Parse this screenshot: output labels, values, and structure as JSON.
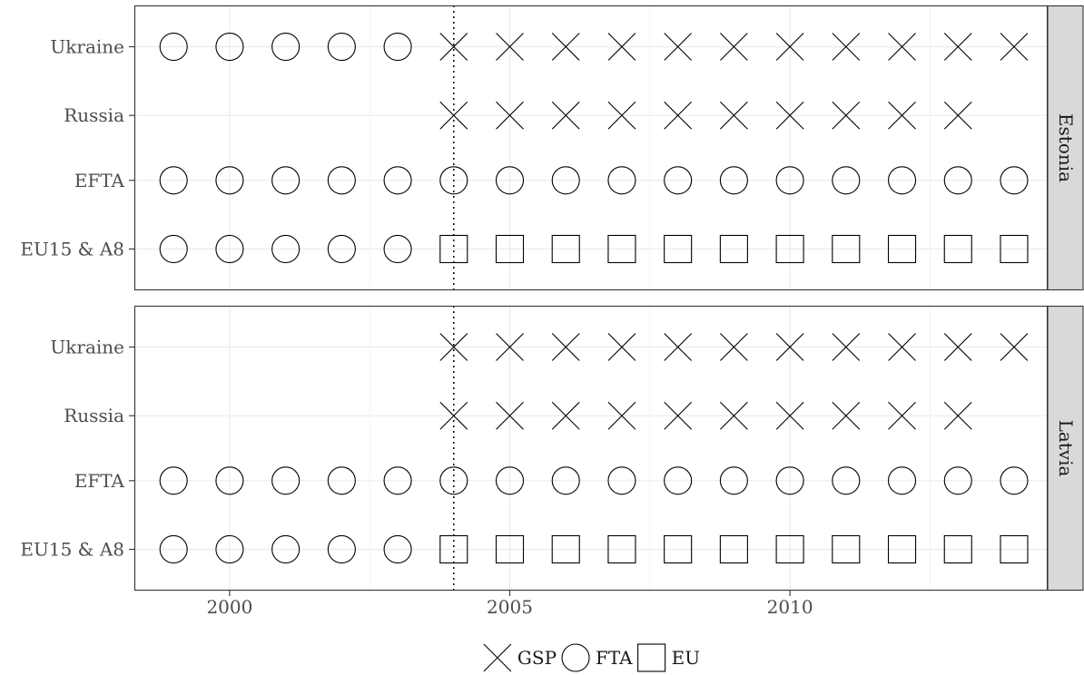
{
  "chart_data": {
    "type": "scatter",
    "x_axis": {
      "range": [
        1998.3,
        2014.6
      ],
      "major_ticks": [
        2000,
        2005,
        2010
      ],
      "tick_labels": [
        "2000",
        "2005",
        "2010"
      ],
      "grid": true
    },
    "y_categories": [
      "EU15 & A8",
      "EFTA",
      "Russia",
      "Ukraine"
    ],
    "reference_line": {
      "x": 2004,
      "style": "dotted"
    },
    "legend": {
      "position": "bottom",
      "entries": [
        {
          "label": "GSP",
          "shape": "cross"
        },
        {
          "label": "FTA",
          "shape": "circle"
        },
        {
          "label": "EU",
          "shape": "square"
        }
      ]
    },
    "panels": [
      {
        "strip_label": "Estonia",
        "rows": [
          {
            "partner": "Ukraine",
            "points": [
              {
                "from": 1999,
                "to": 2003,
                "regime": "FTA"
              },
              {
                "from": 2004,
                "to": 2014,
                "regime": "GSP"
              }
            ]
          },
          {
            "partner": "Russia",
            "points": [
              {
                "from": 2004,
                "to": 2013,
                "regime": "GSP"
              }
            ]
          },
          {
            "partner": "EFTA",
            "points": [
              {
                "from": 1999,
                "to": 2014,
                "regime": "FTA"
              }
            ]
          },
          {
            "partner": "EU15 & A8",
            "points": [
              {
                "from": 1999,
                "to": 2003,
                "regime": "FTA"
              },
              {
                "from": 2004,
                "to": 2014,
                "regime": "EU"
              }
            ]
          }
        ]
      },
      {
        "strip_label": "Latvia",
        "rows": [
          {
            "partner": "Ukraine",
            "points": [
              {
                "from": 2004,
                "to": 2014,
                "regime": "GSP"
              }
            ]
          },
          {
            "partner": "Russia",
            "points": [
              {
                "from": 2004,
                "to": 2013,
                "regime": "GSP"
              }
            ]
          },
          {
            "partner": "EFTA",
            "points": [
              {
                "from": 1999,
                "to": 2014,
                "regime": "FTA"
              }
            ]
          },
          {
            "partner": "EU15 & A8",
            "points": [
              {
                "from": 1999,
                "to": 2003,
                "regime": "FTA"
              },
              {
                "from": 2004,
                "to": 2014,
                "regime": "EU"
              }
            ]
          }
        ]
      }
    ]
  }
}
